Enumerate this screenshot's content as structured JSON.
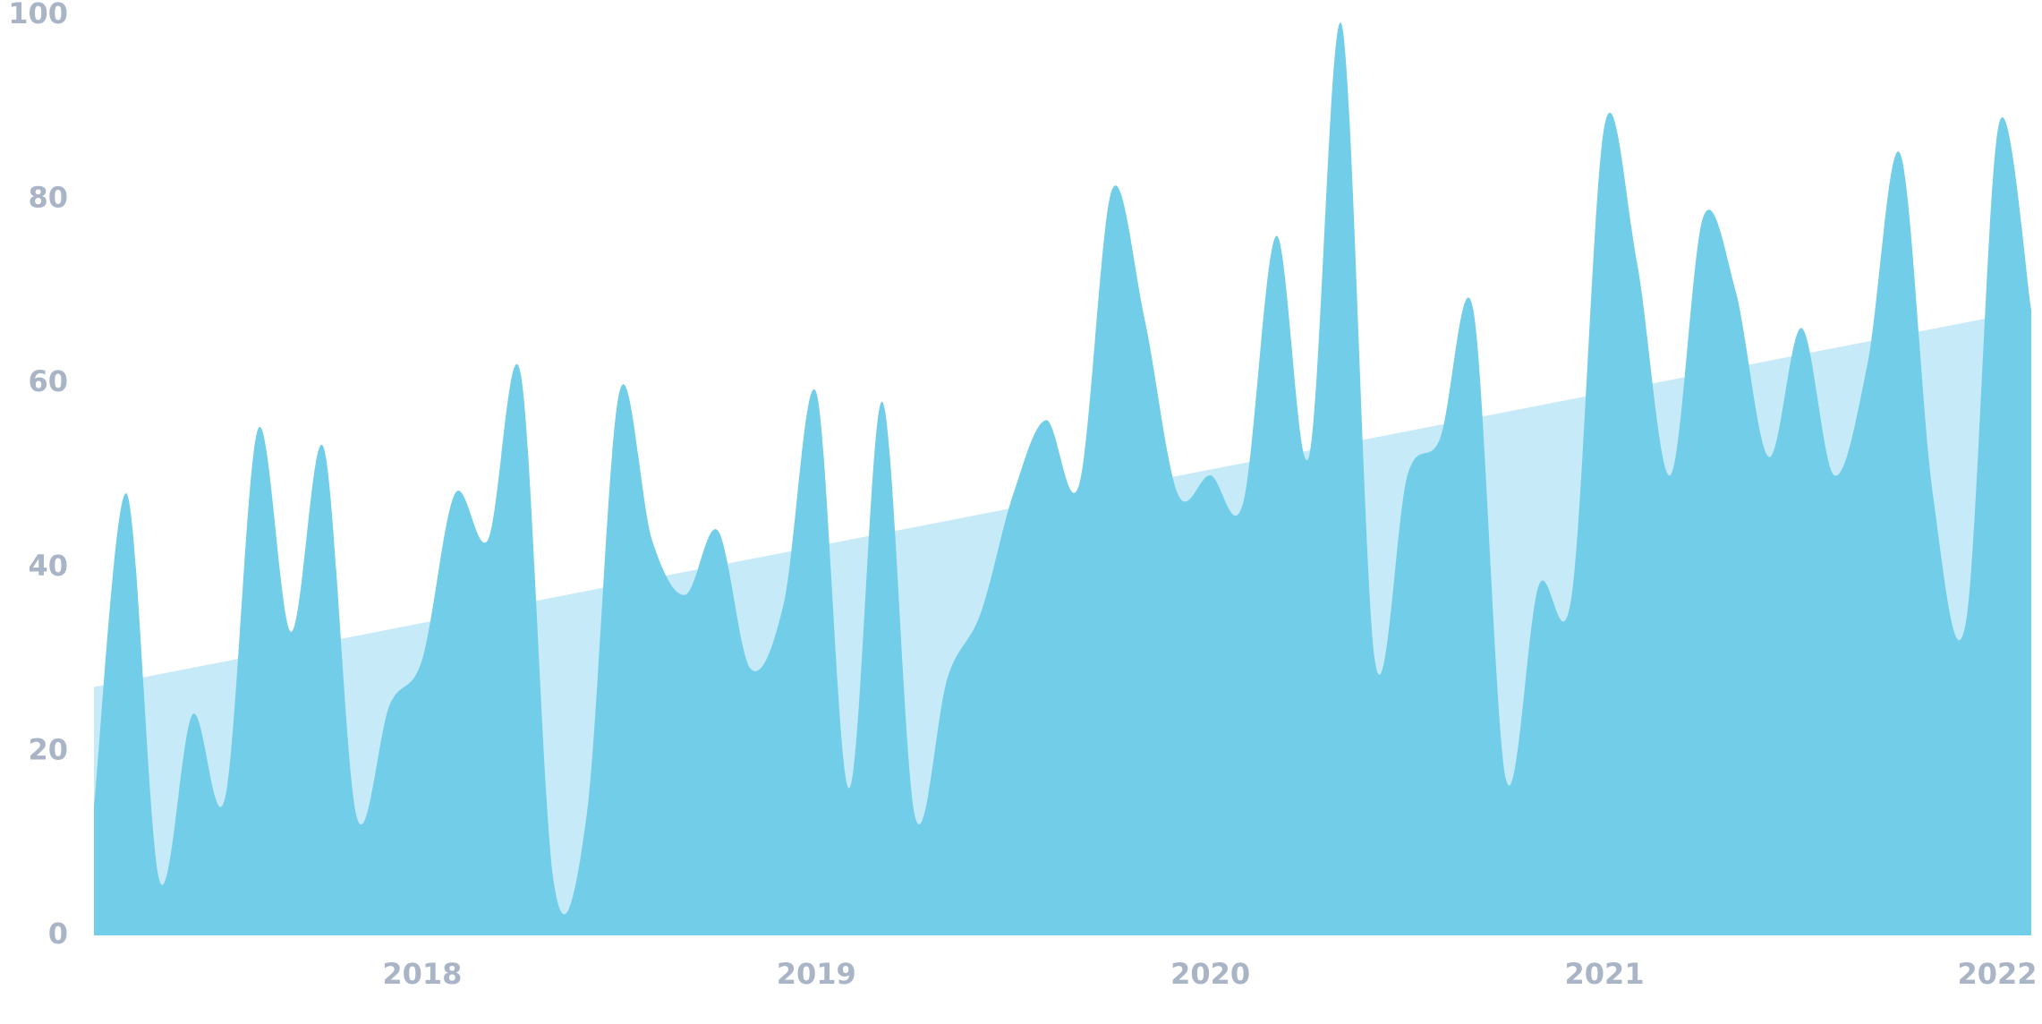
{
  "chart_data": {
    "type": "area",
    "xlim": [
      2017.167,
      2022.083
    ],
    "xticks": [
      2018,
      2019,
      2020,
      2021,
      2022
    ],
    "ylim": [
      0,
      100
    ],
    "yticks": [
      0,
      20,
      40,
      60,
      80,
      100
    ],
    "series": [
      {
        "color": "#c6eaf8",
        "x": [
          2017.167,
          2022.083
        ],
        "values": [
          27,
          68
        ]
      },
      {
        "color": "#72cde9",
        "x": [
          2017.167,
          2017.25,
          2017.333,
          2017.417,
          2017.5,
          2017.583,
          2017.667,
          2017.75,
          2017.833,
          2017.917,
          2018,
          2018.083,
          2018.167,
          2018.25,
          2018.333,
          2018.417,
          2018.5,
          2018.583,
          2018.667,
          2018.75,
          2018.833,
          2018.917,
          2019,
          2019.083,
          2019.167,
          2019.25,
          2019.333,
          2019.417,
          2019.5,
          2019.583,
          2019.667,
          2019.75,
          2019.833,
          2019.917,
          2020,
          2020.083,
          2020.167,
          2020.25,
          2020.333,
          2020.417,
          2020.5,
          2020.583,
          2020.667,
          2020.75,
          2020.833,
          2020.917,
          2021,
          2021.083,
          2021.167,
          2021.25,
          2021.333,
          2021.417,
          2021.5,
          2021.583,
          2021.667,
          2021.75,
          2021.833,
          2021.917,
          2022,
          2022.083
        ],
        "values": [
          14,
          48,
          6,
          24,
          15,
          55,
          33,
          53,
          13,
          25,
          30,
          48,
          43,
          61,
          6,
          13,
          59,
          43,
          37,
          44,
          29,
          36,
          59,
          16,
          58,
          13,
          28,
          35,
          48,
          56,
          49,
          81,
          67,
          48,
          50,
          47,
          76,
          52,
          99,
          30,
          50,
          54,
          68,
          17,
          38,
          37,
          88,
          73,
          50,
          78,
          70,
          52,
          66,
          50,
          62,
          85,
          48,
          34,
          88,
          68
        ]
      }
    ]
  }
}
